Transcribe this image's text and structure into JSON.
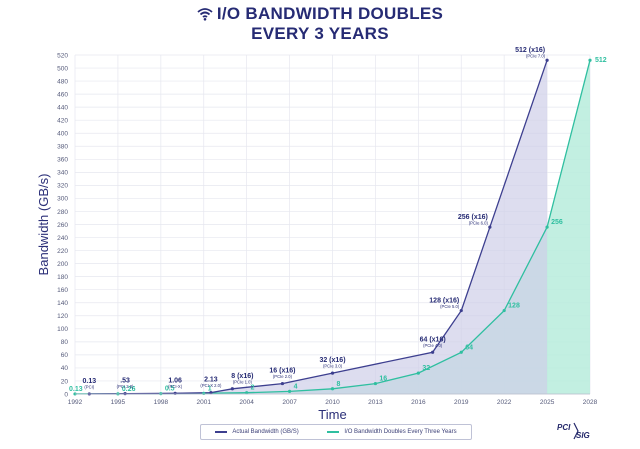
{
  "title_line1": "I/O BANDWIDTH DOUBLES",
  "title_line2": "EVERY 3 YEARS",
  "logo": {
    "text_top": "PCI",
    "text_bottom": "SIG"
  },
  "colors": {
    "title": "#262b74",
    "actual_line": "#3d3f8f",
    "actual_fill": "#cfcfe8",
    "doubling_line": "#2fbfa0",
    "doubling_fill": "#b7ecdc",
    "axis_text": "#555a7a",
    "grid": "#e6e7ef"
  },
  "chart_data": {
    "type": "area",
    "title": "I/O BANDWIDTH DOUBLES EVERY 3 YEARS",
    "xlabel": "Time",
    "ylabel": "Bandwidth (GB/s)",
    "xlim": [
      1992,
      2028
    ],
    "ylim": [
      0,
      520
    ],
    "x_ticks": [
      "1992",
      "1995",
      "1998",
      "2001",
      "2004",
      "2007",
      "2010",
      "2013",
      "2016",
      "2019",
      "2022",
      "2025",
      "2028"
    ],
    "y_ticks": [
      0,
      20,
      40,
      60,
      80,
      100,
      120,
      140,
      160,
      180,
      200,
      220,
      240,
      260,
      280,
      300,
      320,
      340,
      360,
      380,
      400,
      420,
      440,
      460,
      480,
      500,
      520
    ],
    "grid": true,
    "legend_position": "bottom",
    "series": [
      {
        "name": "Actual Bandwidth (GB/S)",
        "points": [
          {
            "x": 1993,
            "y": 0.13
          },
          {
            "x": 1995.5,
            "y": 0.53
          },
          {
            "x": 1999,
            "y": 1.06
          },
          {
            "x": 2001.5,
            "y": 2.13
          },
          {
            "x": 2003,
            "y": 8
          },
          {
            "x": 2006.5,
            "y": 16
          },
          {
            "x": 2010,
            "y": 32
          },
          {
            "x": 2017,
            "y": 64
          },
          {
            "x": 2019,
            "y": 128
          },
          {
            "x": 2021,
            "y": 256
          },
          {
            "x": 2025,
            "y": 512
          }
        ],
        "labels": [
          {
            "text": "0.13",
            "sub": "(PCI)",
            "x": 1993,
            "y": 0.13
          },
          {
            "text": ".53",
            "sub": "(PCI 2.0)",
            "x": 1995.5,
            "y": 0.53
          },
          {
            "text": "1.06",
            "sub": "(PCI-X)",
            "x": 1999,
            "y": 1.06
          },
          {
            "text": "2.13",
            "sub": "(PCI-X 2.0)",
            "x": 2001.5,
            "y": 2.13
          },
          {
            "text": "8 (x16)",
            "sub": "(PCIe 1.0)",
            "x": 2003,
            "y": 8
          },
          {
            "text": "16 (x16)",
            "sub": "(PCIe 2.0)",
            "x": 2006.5,
            "y": 16
          },
          {
            "text": "32 (x16)",
            "sub": "(PCIe 3.0)",
            "x": 2010,
            "y": 32
          },
          {
            "text": "64 (x16)",
            "sub": "(PCIe 4.0)",
            "x": 2017,
            "y": 64
          },
          {
            "text": "128 (x16)",
            "sub": "(PCIe 5.0)",
            "x": 2019,
            "y": 128
          },
          {
            "text": "256 (x16)",
            "sub": "(PCIe 6.0)",
            "x": 2021,
            "y": 256
          },
          {
            "text": "512 (x16)",
            "sub": "(PCIe 7.0)",
            "x": 2025,
            "y": 512
          }
        ]
      },
      {
        "name": "I/O Bandwidth Doubles Every Three Years",
        "points": [
          {
            "x": 1992,
            "y": 0.13
          },
          {
            "x": 1995,
            "y": 0.26
          },
          {
            "x": 1998,
            "y": 0.5
          },
          {
            "x": 2001,
            "y": 1
          },
          {
            "x": 2004,
            "y": 2
          },
          {
            "x": 2007,
            "y": 4
          },
          {
            "x": 2010,
            "y": 8
          },
          {
            "x": 2013,
            "y": 16
          },
          {
            "x": 2016,
            "y": 32
          },
          {
            "x": 2019,
            "y": 64
          },
          {
            "x": 2022,
            "y": 128
          },
          {
            "x": 2025,
            "y": 256
          },
          {
            "x": 2028,
            "y": 512
          }
        ],
        "labels": [
          {
            "text": "0.13",
            "x": 1992,
            "y": 0.13
          },
          {
            "text": "0.26",
            "x": 1995,
            "y": 0.26
          },
          {
            "text": "0.5",
            "x": 1998,
            "y": 0.5
          },
          {
            "text": "1",
            "x": 2001,
            "y": 1
          },
          {
            "text": "2",
            "x": 2004,
            "y": 2
          },
          {
            "text": "4",
            "x": 2007,
            "y": 4
          },
          {
            "text": "8",
            "x": 2010,
            "y": 8
          },
          {
            "text": "16",
            "x": 2013,
            "y": 16
          },
          {
            "text": "32",
            "x": 2016,
            "y": 32
          },
          {
            "text": "64",
            "x": 2019,
            "y": 64
          },
          {
            "text": "128",
            "x": 2022,
            "y": 128
          },
          {
            "text": "256",
            "x": 2025,
            "y": 256
          },
          {
            "text": "512",
            "x": 2028,
            "y": 512
          }
        ]
      }
    ]
  }
}
